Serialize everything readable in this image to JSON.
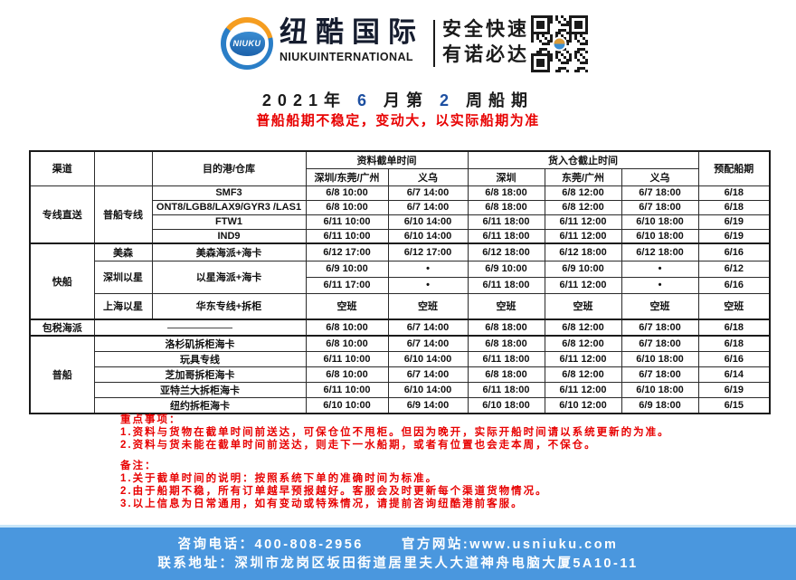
{
  "brand": {
    "logo_text": "NIUKU",
    "name_cn": "纽酷国际",
    "name_en": "NIUKUINTERNATIONAL",
    "slogan_line1": "安全快速",
    "slogan_line2": "有诺必达"
  },
  "title": {
    "part1": "2021年",
    "month": "6",
    "part2": "月第",
    "week": "2",
    "part3": "周船期"
  },
  "subtitle": "普船船期不稳定，变动大，以实际船期为准",
  "colors": {
    "accent_blue": "#1d4fa1",
    "alert_red": "#e80202",
    "footer_blue": "#4a97de"
  },
  "table": {
    "header": {
      "channel": "渠道",
      "destination": "目的港/仓库",
      "doc_cutoff": "资料截单时间",
      "warehouse_cutoff": "货入仓截止时间",
      "schedule": "预配船期",
      "sub": [
        "深圳/东莞/广州",
        "义乌",
        "深圳",
        "东莞/广州",
        "义乌"
      ]
    },
    "groups": {
      "direct": "专线直送",
      "direct_sub": "普船专线",
      "fast": "快船",
      "fast_sub_meisen": "美森",
      "fast_sub_sz_zim": "深圳以星",
      "fast_sub_sh_zim": "上海以星",
      "tax_included": "包税海派",
      "regular": "普船"
    },
    "rows": [
      [
        "SMF3",
        "6/8 10:00",
        "6/7 14:00",
        "6/8 18:00",
        "6/8 12:00",
        "6/7 18:00",
        "6/18"
      ],
      [
        "ONT8/LGB8/LAX9/GYR3 /LAS1",
        "6/8 10:00",
        "6/7 14:00",
        "6/8 18:00",
        "6/8 12:00",
        "6/7 18:00",
        "6/18"
      ],
      [
        "FTW1",
        "6/11 10:00",
        "6/10 14:00",
        "6/11 18:00",
        "6/11 12:00",
        "6/10 18:00",
        "6/19"
      ],
      [
        "IND9",
        "6/11 10:00",
        "6/10 14:00",
        "6/11 18:00",
        "6/11 12:00",
        "6/10 18:00",
        "6/19"
      ],
      [
        "美森海派+海卡",
        "6/12 17:00",
        "6/12 17:00",
        "6/12 18:00",
        "6/12 18:00",
        "6/12 18:00",
        "6/16"
      ],
      [
        "以星海派+海卡",
        "6/9 10:00",
        "•",
        "6/9 10:00",
        "6/9 10:00",
        "•",
        "6/12"
      ],
      [
        "6/11 17:00",
        "•",
        "6/11 18:00",
        "6/11 12:00",
        "•",
        "6/16"
      ],
      [
        "华东专线+拆柜",
        "空班",
        "空班",
        "空班",
        "空班",
        "空班",
        "空班"
      ],
      [
        "6/8 10:00",
        "6/7 14:00",
        "6/8 18:00",
        "6/8 12:00",
        "6/7 18:00",
        "6/18"
      ],
      [
        "洛杉矶拆柜海卡",
        "6/8 10:00",
        "6/7 14:00",
        "6/8 18:00",
        "6/8 12:00",
        "6/7 18:00",
        "6/18"
      ],
      [
        "玩具专线",
        "6/11 10:00",
        "6/10 14:00",
        "6/11 18:00",
        "6/11 12:00",
        "6/10 18:00",
        "6/16"
      ],
      [
        "芝加哥拆柜海卡",
        "6/8 10:00",
        "6/7 14:00",
        "6/8 18:00",
        "6/8 12:00",
        "6/7 18:00",
        "6/14"
      ],
      [
        "亚特兰大拆柜海卡",
        "6/11 10:00",
        "6/10 14:00",
        "6/11 18:00",
        "6/11 12:00",
        "6/10 18:00",
        "6/19"
      ],
      [
        "纽约拆柜海卡",
        "6/10 10:00",
        "6/9 14:00",
        "6/10 18:00",
        "6/10 12:00",
        "6/9 18:00",
        "6/15"
      ]
    ]
  },
  "notes": {
    "important_title": "重点事项：",
    "important": [
      "1.资料与货物在截单时间前送达，可保仓位不甩柜。但因为晚开，实际开船时间请以系统更新的为准。",
      "2.资料与货未能在截单时间前送达，则走下一水船期，或者有位置也会走本周，不保仓。"
    ],
    "remark_title": "备注：",
    "remarks": [
      "1.关于截单时间的说明：按照系统下单的准确时间为标准。",
      "2.由于船期不稳，所有订单越早预报越好。客服会及时更新每个渠道货物情况。",
      "3.以上信息为日常通用，如有变动或特殊情况，请提前咨询纽酷港前客服。"
    ]
  },
  "footer": {
    "phone_label": "咨询电话：",
    "phone": "400-808-2956",
    "website_label": "官方网站:",
    "website": "www.usniuku.com",
    "address_label": "联系地址：",
    "address": "深圳市龙岗区坂田街道居里夫人大道神舟电脑大厦5A10-11"
  }
}
